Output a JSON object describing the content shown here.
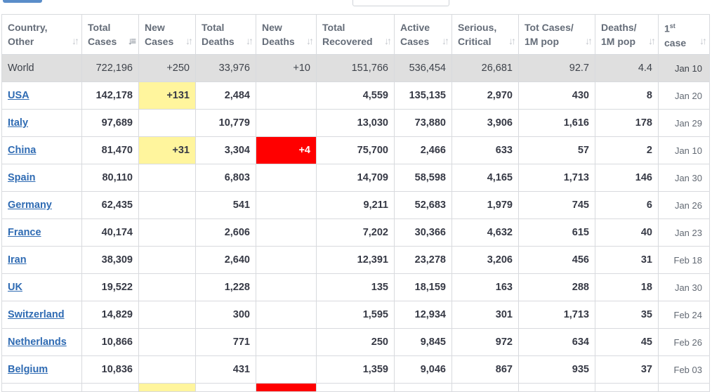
{
  "headers": [
    {
      "line1": "Country,",
      "line2": "Other",
      "active_sort": false
    },
    {
      "line1": "Total",
      "line2": "Cases",
      "active_sort": true
    },
    {
      "line1": "New",
      "line2": "Cases",
      "active_sort": false
    },
    {
      "line1": "Total",
      "line2": "Deaths",
      "active_sort": false
    },
    {
      "line1": "New",
      "line2": "Deaths",
      "active_sort": false
    },
    {
      "line1": "Total",
      "line2": "Recovered",
      "active_sort": false
    },
    {
      "line1": "Active",
      "line2": "Cases",
      "active_sort": false
    },
    {
      "line1": "Serious,",
      "line2": "Critical",
      "active_sort": false
    },
    {
      "line1": "Tot Cases/",
      "line2": "1M pop",
      "active_sort": false
    },
    {
      "line1": "Deaths/",
      "line2": "1M pop",
      "active_sort": false
    },
    {
      "line1": "1",
      "sup": "st",
      "line2": "case",
      "active_sort": false
    }
  ],
  "world": {
    "country": "World",
    "total_cases": "722,196",
    "new_cases": "+250",
    "total_deaths": "33,976",
    "new_deaths": "+10",
    "total_recovered": "151,766",
    "active_cases": "536,454",
    "serious_critical": "26,681",
    "cases_per_1m": "92.7",
    "deaths_per_1m": "4.4",
    "first_case": "Jan 10"
  },
  "rows": [
    {
      "country": "USA",
      "total_cases": "142,178",
      "new_cases": "+131",
      "total_deaths": "2,484",
      "new_deaths": "",
      "total_recovered": "4,559",
      "active_cases": "135,135",
      "serious_critical": "2,970",
      "cases_per_1m": "430",
      "deaths_per_1m": "8",
      "first_case": "Jan 20"
    },
    {
      "country": "Italy",
      "total_cases": "97,689",
      "new_cases": "",
      "total_deaths": "10,779",
      "new_deaths": "",
      "total_recovered": "13,030",
      "active_cases": "73,880",
      "serious_critical": "3,906",
      "cases_per_1m": "1,616",
      "deaths_per_1m": "178",
      "first_case": "Jan 29"
    },
    {
      "country": "China",
      "total_cases": "81,470",
      "new_cases": "+31",
      "total_deaths": "3,304",
      "new_deaths": "+4",
      "total_recovered": "75,700",
      "active_cases": "2,466",
      "serious_critical": "633",
      "cases_per_1m": "57",
      "deaths_per_1m": "2",
      "first_case": "Jan 10"
    },
    {
      "country": "Spain",
      "total_cases": "80,110",
      "new_cases": "",
      "total_deaths": "6,803",
      "new_deaths": "",
      "total_recovered": "14,709",
      "active_cases": "58,598",
      "serious_critical": "4,165",
      "cases_per_1m": "1,713",
      "deaths_per_1m": "146",
      "first_case": "Jan 30"
    },
    {
      "country": "Germany",
      "total_cases": "62,435",
      "new_cases": "",
      "total_deaths": "541",
      "new_deaths": "",
      "total_recovered": "9,211",
      "active_cases": "52,683",
      "serious_critical": "1,979",
      "cases_per_1m": "745",
      "deaths_per_1m": "6",
      "first_case": "Jan 26"
    },
    {
      "country": "France",
      "total_cases": "40,174",
      "new_cases": "",
      "total_deaths": "2,606",
      "new_deaths": "",
      "total_recovered": "7,202",
      "active_cases": "30,366",
      "serious_critical": "4,632",
      "cases_per_1m": "615",
      "deaths_per_1m": "40",
      "first_case": "Jan 23"
    },
    {
      "country": "Iran",
      "total_cases": "38,309",
      "new_cases": "",
      "total_deaths": "2,640",
      "new_deaths": "",
      "total_recovered": "12,391",
      "active_cases": "23,278",
      "serious_critical": "3,206",
      "cases_per_1m": "456",
      "deaths_per_1m": "31",
      "first_case": "Feb 18"
    },
    {
      "country": "UK",
      "total_cases": "19,522",
      "new_cases": "",
      "total_deaths": "1,228",
      "new_deaths": "",
      "total_recovered": "135",
      "active_cases": "18,159",
      "serious_critical": "163",
      "cases_per_1m": "288",
      "deaths_per_1m": "18",
      "first_case": "Jan 30"
    },
    {
      "country": "Switzerland",
      "total_cases": "14,829",
      "new_cases": "",
      "total_deaths": "300",
      "new_deaths": "",
      "total_recovered": "1,595",
      "active_cases": "12,934",
      "serious_critical": "301",
      "cases_per_1m": "1,713",
      "deaths_per_1m": "35",
      "first_case": "Feb 24"
    },
    {
      "country": "Netherlands",
      "total_cases": "10,866",
      "new_cases": "",
      "total_deaths": "771",
      "new_deaths": "",
      "total_recovered": "250",
      "active_cases": "9,845",
      "serious_critical": "972",
      "cases_per_1m": "634",
      "deaths_per_1m": "45",
      "first_case": "Feb 26"
    },
    {
      "country": "Belgium",
      "total_cases": "10,836",
      "new_cases": "",
      "total_deaths": "431",
      "new_deaths": "",
      "total_recovered": "1,359",
      "active_cases": "9,046",
      "serious_critical": "867",
      "cases_per_1m": "935",
      "deaths_per_1m": "37",
      "first_case": "Feb 03"
    }
  ],
  "next_row_highlights": {
    "new_cases": true,
    "new_deaths": true
  },
  "colors": {
    "new_cases_highlight": "#fff59d",
    "new_deaths_highlight": "#ff0000",
    "link": "#2f6bb3",
    "world_row": "#dfdfdf"
  },
  "icons": {
    "sort": "sort-arrows-icon"
  }
}
